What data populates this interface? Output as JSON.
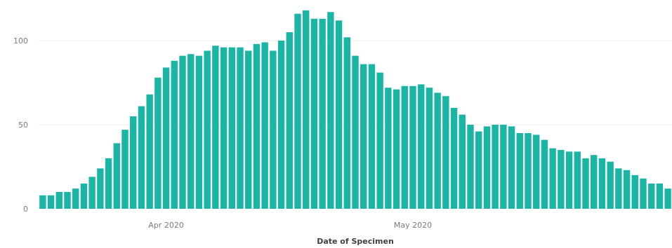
{
  "chart_data": {
    "type": "bar",
    "xlabel": "Date of Specimen",
    "ylabel": "",
    "ylim": [
      0,
      120
    ],
    "y_ticks": [
      0,
      50,
      100
    ],
    "x_tick_labels": [
      {
        "label": "Apr 2020",
        "date": "2020-04-01"
      },
      {
        "label": "May 2020",
        "date": "2020-05-01"
      }
    ],
    "grid": true,
    "start_date": "2020-03-17",
    "bar_color": "#1ab5a5",
    "values": [
      8,
      8,
      10,
      10,
      12,
      15,
      19,
      24,
      30,
      39,
      47,
      55,
      61,
      68,
      78,
      84,
      88,
      91,
      92,
      91,
      94,
      97,
      96,
      96,
      96,
      94,
      98,
      99,
      94,
      100,
      105,
      116,
      118,
      113,
      113,
      117,
      112,
      102,
      91,
      86,
      86,
      81,
      72,
      71,
      73,
      73,
      74,
      72,
      69,
      67,
      60,
      56,
      50,
      46,
      49,
      50,
      50,
      49,
      45,
      45,
      44,
      41,
      36,
      35,
      34,
      34,
      30,
      32,
      30,
      28,
      24,
      23,
      20,
      18,
      15,
      15,
      12
    ]
  }
}
